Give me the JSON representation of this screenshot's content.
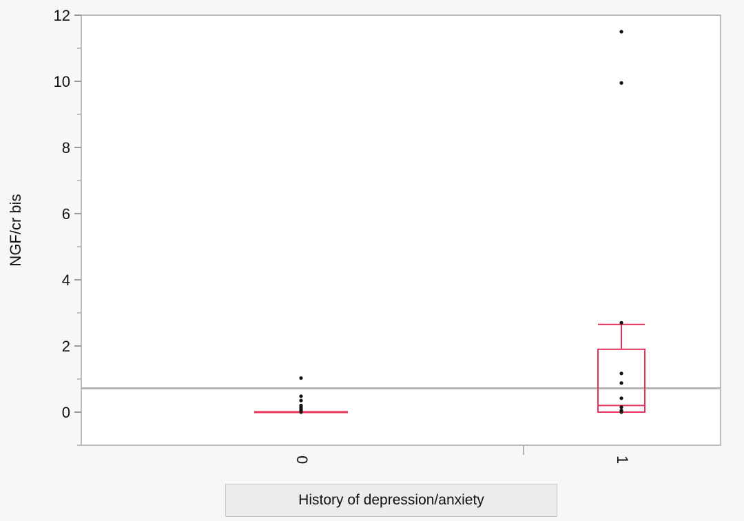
{
  "chart_data": {
    "type": "boxplot",
    "title": "",
    "xlabel": "History of depression/anxiety",
    "ylabel": "NGF/cr bis",
    "ylim": [
      -1,
      12
    ],
    "yticks": [
      0,
      2,
      4,
      6,
      8,
      10,
      12
    ],
    "categories": [
      "0",
      "1"
    ],
    "reference_line": 0.72,
    "groups": [
      {
        "category": "0",
        "box": {
          "min": 0,
          "q1": 0,
          "median": 0,
          "q3": 0,
          "max": 0
        },
        "points": [
          0.0,
          0.05,
          0.1,
          0.15,
          0.2,
          0.35,
          0.48,
          1.03
        ]
      },
      {
        "category": "1",
        "box": {
          "min": 0,
          "q1": 0,
          "median": 0.2,
          "q3": 1.9,
          "max": 2.65
        },
        "points": [
          0.0,
          0.05,
          0.15,
          0.42,
          0.88,
          1.17,
          2.7,
          9.95,
          11.5
        ]
      }
    ],
    "colors": {
      "box": "#e8325a",
      "points": "#111111",
      "reference_line": "#b4b4b4",
      "frame": "#bdbdbd"
    },
    "grid": false
  }
}
